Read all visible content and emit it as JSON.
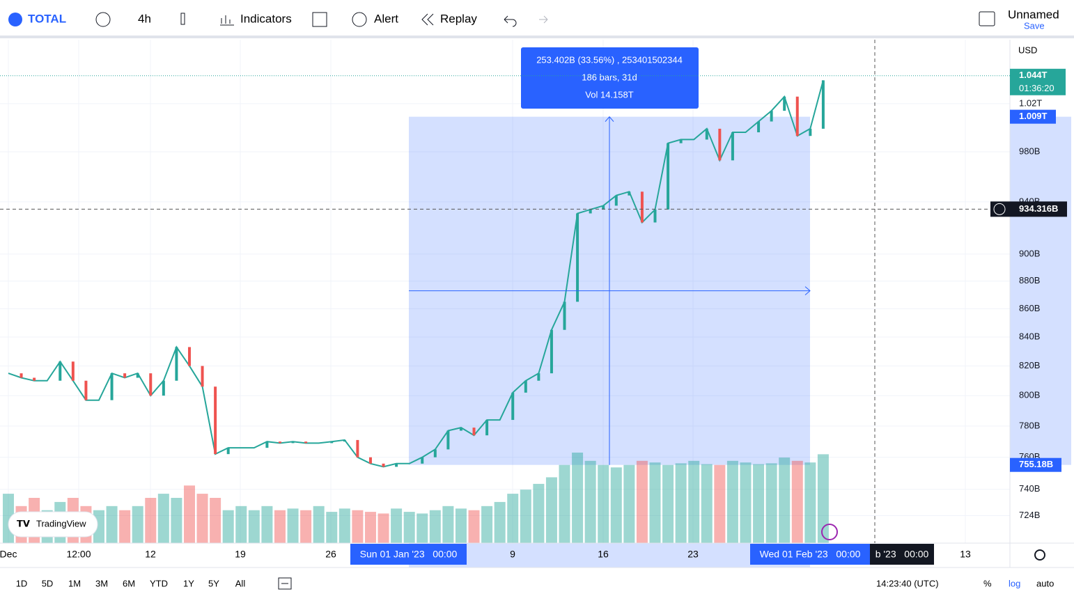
{
  "toolbar": {
    "symbol": "TOTAL",
    "interval": "4h",
    "indicators": "Indicators",
    "alert": "Alert",
    "replay": "Replay",
    "layout_name": "Unnamed",
    "save": "Save"
  },
  "chart_data": {
    "type": "line",
    "log": true,
    "color": "#26a69a",
    "up_color": "#26a69a",
    "down_color": "#ef5350",
    "values": [
      815,
      812,
      810,
      810,
      823,
      810,
      797,
      797,
      815,
      812,
      815,
      800,
      810,
      833,
      820,
      806,
      762,
      766,
      766,
      766,
      770,
      769,
      770,
      769,
      769,
      770,
      771,
      760,
      756,
      754,
      756,
      756,
      760,
      765,
      777,
      779,
      774,
      784,
      784,
      802,
      810,
      815,
      845,
      865,
      931,
      934,
      937,
      945,
      948,
      924,
      934,
      987,
      990,
      990,
      999,
      973,
      996,
      996,
      1005,
      1014,
      1026,
      993,
      999,
      1040
    ],
    "volume": [
      60,
      45,
      55,
      40,
      50,
      55,
      45,
      40,
      45,
      40,
      45,
      55,
      60,
      55,
      70,
      60,
      55,
      40,
      45,
      40,
      45,
      40,
      42,
      40,
      45,
      38,
      42,
      40,
      38,
      36,
      42,
      38,
      36,
      40,
      45,
      42,
      40,
      45,
      50,
      60,
      65,
      72,
      80,
      95,
      110,
      100,
      95,
      92,
      95,
      100,
      98,
      95,
      97,
      100,
      96,
      95,
      100,
      98,
      96,
      97,
      104,
      100,
      98,
      108
    ],
    "ylim": [
      707.6,
      1075.8
    ],
    "yticks": [
      {
        "value": 724,
        "label": "724B"
      },
      {
        "value": 740,
        "label": "740B"
      },
      {
        "value": 760,
        "label": "760B"
      },
      {
        "value": 780,
        "label": "780B"
      },
      {
        "value": 800,
        "label": "800B"
      },
      {
        "value": 820,
        "label": "820B"
      },
      {
        "value": 840,
        "label": "840B"
      },
      {
        "value": 860,
        "label": "860B"
      },
      {
        "value": 880,
        "label": "880B"
      },
      {
        "value": 900,
        "label": "900B"
      },
      {
        "value": 940,
        "label": "940B"
      },
      {
        "value": 980,
        "label": "980B"
      },
      {
        "value": 1020,
        "label": "1.02T"
      }
    ],
    "currency": "USD",
    "last_price": {
      "value": 1044,
      "label": "1.044T"
    },
    "countdown": "01:36:20",
    "crosshair": {
      "value": 934.316,
      "label": "934.316B"
    },
    "measure": {
      "from": 755.18,
      "from_label": "755.18B",
      "to": 1009,
      "to_label": "1.009T",
      "lines": [
        "253.402B (33.56%) , 253401502344",
        "186 bars, 31d",
        "Vol 14.158T"
      ]
    },
    "time_labels": [
      "Dec",
      "12:00",
      "12",
      "19",
      "26",
      "9",
      "16",
      "23",
      "13"
    ],
    "range_start": "Sun 01 Jan '23   00:00",
    "range_end": "Wed 01 Feb '23   00:00",
    "crosshair_time": "b '23   00:00"
  },
  "watermark": "TradingView",
  "bottom_bar": {
    "ranges": [
      "1D",
      "5D",
      "1M",
      "3M",
      "6M",
      "YTD",
      "1Y",
      "5Y",
      "All"
    ],
    "clock": "14:23:40 (UTC)",
    "percent": "%",
    "log": "log",
    "auto": "auto"
  }
}
